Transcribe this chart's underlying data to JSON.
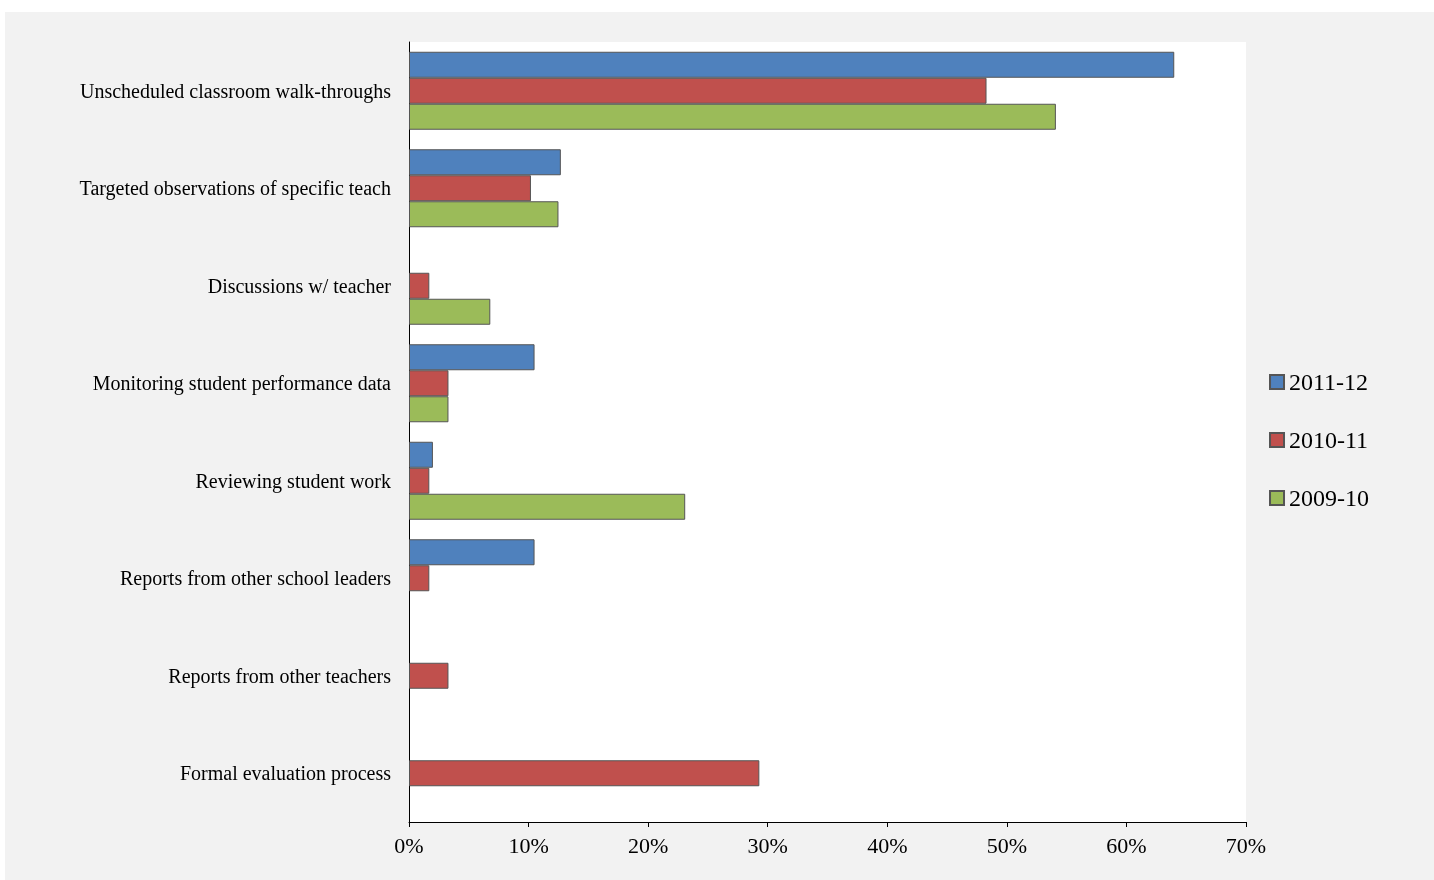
{
  "chart_data": {
    "type": "bar",
    "orientation": "horizontal",
    "categories": [
      "Unscheduled classroom walk-throughs",
      "Targeted observations of specific teach",
      "Discussions w/ teacher",
      "Monitoring student performance data",
      "Reviewing student work",
      "Reports from other school leaders",
      "Reports from other teachers",
      "Formal evaluation process"
    ],
    "series": [
      {
        "name": "2011-12",
        "color": "#4f81bd",
        "values": [
          64,
          12.7,
          null,
          10.5,
          2,
          10.5,
          null,
          null
        ]
      },
      {
        "name": "2010-11",
        "color": "#c0504d",
        "values": [
          48.3,
          10.2,
          1.7,
          3.3,
          1.7,
          1.7,
          3.3,
          29.3
        ]
      },
      {
        "name": "2009-10",
        "color": "#9bbb59",
        "values": [
          54.1,
          12.5,
          6.8,
          3.3,
          23.1,
          null,
          null,
          null
        ]
      }
    ],
    "xlim": [
      0,
      70
    ],
    "xticks": [
      {
        "value": 0,
        "label": "0%"
      },
      {
        "value": 10,
        "label": "10%"
      },
      {
        "value": 20,
        "label": "20%"
      },
      {
        "value": 30,
        "label": "30%"
      },
      {
        "value": 40,
        "label": "40%"
      },
      {
        "value": 50,
        "label": "50%"
      },
      {
        "value": 60,
        "label": "60%"
      },
      {
        "value": 70,
        "label": "70%"
      }
    ],
    "grid": false,
    "legend": "right"
  }
}
